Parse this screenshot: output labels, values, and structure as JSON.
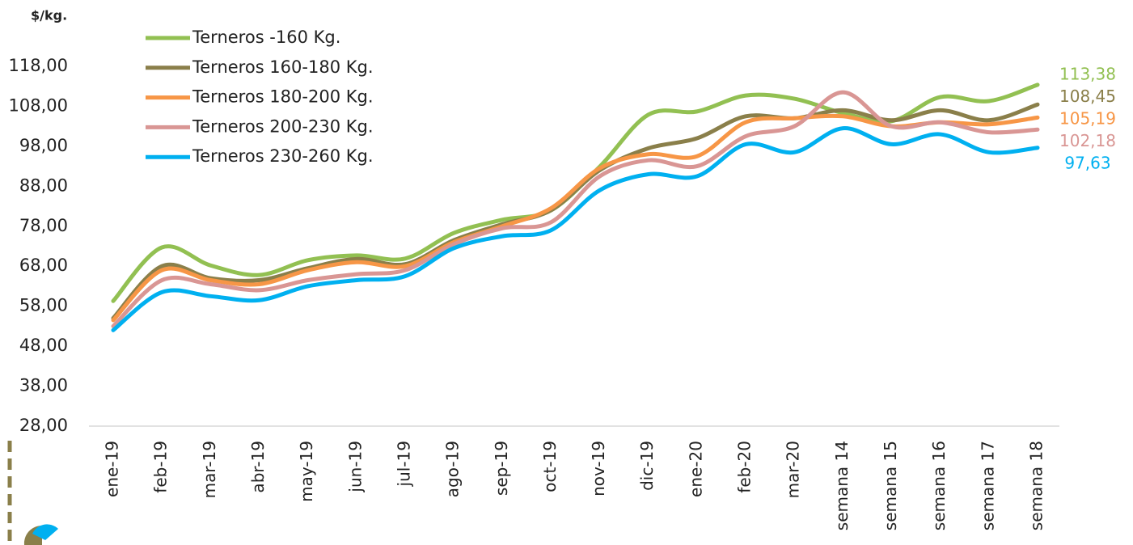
{
  "chart_data": {
    "type": "line",
    "y_axis_label": "$/kg.",
    "categories": [
      "ene-19",
      "feb-19",
      "mar-19",
      "abr-19",
      "may-19",
      "jun-19",
      "jul-19",
      "ago-19",
      "sep-19",
      "oct-19",
      "nov-19",
      "dic-19",
      "ene-20",
      "feb-20",
      "mar-20",
      "semana 14",
      "semana 15",
      "semana 16",
      "semana 17",
      "semana 18"
    ],
    "ylim": [
      28,
      118
    ],
    "yticks": [
      {
        "value": 28,
        "label": "28,00"
      },
      {
        "value": 38,
        "label": "38,00"
      },
      {
        "value": 48,
        "label": "48,00"
      },
      {
        "value": 58,
        "label": "58,00"
      },
      {
        "value": 68,
        "label": "68,00"
      },
      {
        "value": 78,
        "label": "78,00"
      },
      {
        "value": 88,
        "label": "88,00"
      },
      {
        "value": 98,
        "label": "98,00"
      },
      {
        "value": 108,
        "label": "108,00"
      },
      {
        "value": 118,
        "label": "118,00"
      }
    ],
    "legend": "top-left",
    "series": [
      {
        "name": "Terneros -160 Kg.",
        "color": "#92c052",
        "values": [
          59.3,
          72.7,
          68.2,
          65.8,
          69.5,
          70.7,
          69.9,
          76.3,
          79.6,
          82,
          92.9,
          105.9,
          106.7,
          110.7,
          109.9,
          106.3,
          104.3,
          110.3,
          109.3,
          113.38
        ],
        "value_labels": [
          null,
          null,
          null,
          null,
          null,
          null,
          null,
          null,
          null,
          null,
          null,
          null,
          null,
          null,
          null,
          null,
          null,
          null,
          null,
          "113,38"
        ]
      },
      {
        "name": "Terneros 160-180 Kg.",
        "color": "#8a7f4a",
        "values": [
          55,
          68,
          65,
          64.5,
          67.5,
          69.8,
          68.5,
          74.5,
          78.5,
          82,
          92,
          97.5,
          100,
          105.5,
          105,
          107,
          104.5,
          107,
          104.5,
          108.45
        ],
        "value_labels": [
          null,
          null,
          null,
          null,
          null,
          null,
          null,
          null,
          null,
          null,
          null,
          null,
          null,
          null,
          null,
          null,
          null,
          null,
          null,
          "108,45"
        ]
      },
      {
        "name": "Terneros 180-200 Kg.",
        "color": "#f79646",
        "values": [
          54.5,
          67,
          64.5,
          63.5,
          67,
          69,
          68,
          74,
          78,
          82.5,
          92.5,
          96,
          95.5,
          104,
          105,
          105.5,
          103,
          104,
          103.5,
          105.19
        ],
        "value_labels": [
          null,
          null,
          null,
          null,
          null,
          null,
          null,
          null,
          null,
          null,
          null,
          null,
          null,
          null,
          null,
          null,
          null,
          null,
          null,
          "105,19"
        ]
      },
      {
        "name": "Terneros 200-230 Kg.",
        "color": "#d99694",
        "values": [
          53,
          64.5,
          63.5,
          62,
          64.5,
          66,
          67,
          73.5,
          77.5,
          79,
          90.5,
          94.5,
          93,
          100.5,
          103,
          111.5,
          103,
          104,
          101.5,
          102.18
        ],
        "value_labels": [
          null,
          null,
          null,
          null,
          null,
          null,
          null,
          null,
          null,
          null,
          null,
          null,
          null,
          null,
          null,
          null,
          null,
          null,
          null,
          "102,18"
        ]
      },
      {
        "name": "Terneros 230-260 Kg.",
        "color": "#00b0f0",
        "values": [
          52,
          61.5,
          60.5,
          59.5,
          63,
          64.5,
          65.5,
          72.5,
          75.5,
          77,
          87,
          91,
          90.5,
          98.5,
          96.5,
          102.5,
          98.5,
          101,
          96.5,
          97.63
        ],
        "value_labels": [
          null,
          null,
          null,
          null,
          null,
          null,
          null,
          null,
          null,
          null,
          null,
          null,
          null,
          null,
          null,
          null,
          null,
          null,
          null,
          "97,63"
        ]
      }
    ]
  }
}
